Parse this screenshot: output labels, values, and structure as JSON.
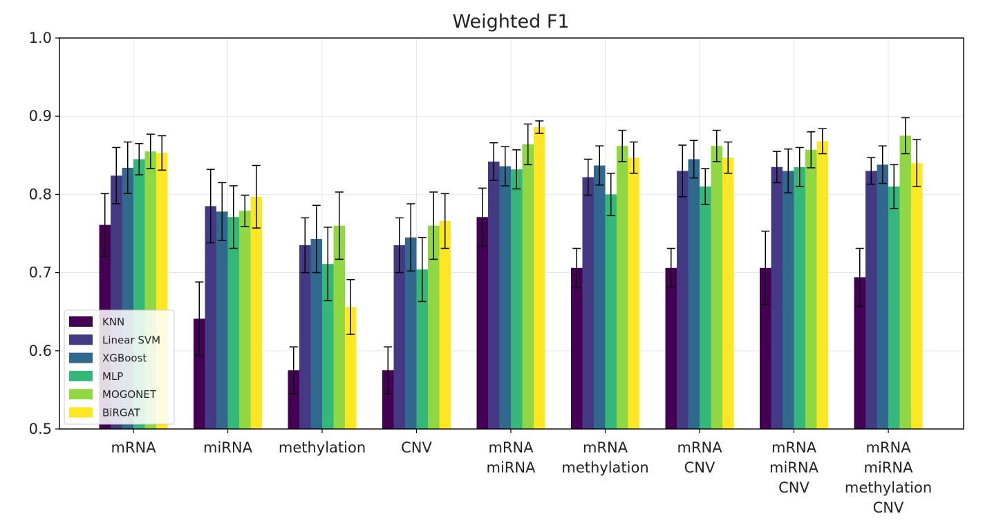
{
  "chart_data": {
    "type": "bar",
    "title": "Weighted F1",
    "xlabel": "",
    "ylabel": "",
    "ylim": [
      0.5,
      1.0
    ],
    "yticks": [
      0.5,
      0.6,
      0.7,
      0.8,
      0.9,
      1.0
    ],
    "ytick_labels": [
      "0.5",
      "0.6",
      "0.7",
      "0.8",
      "0.9",
      "1.0"
    ],
    "grid": true,
    "legend_position": "lower-left",
    "categories": [
      [
        "mRNA"
      ],
      [
        "miRNA"
      ],
      [
        "methylation"
      ],
      [
        "CNV"
      ],
      [
        "mRNA",
        "miRNA"
      ],
      [
        "mRNA",
        "methylation"
      ],
      [
        "mRNA",
        "CNV"
      ],
      [
        "mRNA",
        "miRNA",
        "CNV"
      ],
      [
        "mRNA",
        "miRNA",
        "methylation",
        "CNV"
      ]
    ],
    "series": [
      {
        "name": "KNN",
        "color": "#440154",
        "values": [
          0.761,
          0.641,
          0.575,
          0.575,
          0.771,
          0.706,
          0.706,
          0.706,
          0.694
        ],
        "errors": [
          0.04,
          0.047,
          0.03,
          0.03,
          0.037,
          0.025,
          0.025,
          0.047,
          0.037
        ]
      },
      {
        "name": "Linear SVM",
        "color": "#443983",
        "values": [
          0.824,
          0.785,
          0.735,
          0.735,
          0.842,
          0.822,
          0.83,
          0.835,
          0.83
        ],
        "errors": [
          0.036,
          0.047,
          0.035,
          0.035,
          0.024,
          0.023,
          0.033,
          0.02,
          0.017
        ]
      },
      {
        "name": "XGBoost",
        "color": "#31688e",
        "values": [
          0.834,
          0.778,
          0.743,
          0.745,
          0.836,
          0.837,
          0.845,
          0.83,
          0.838
        ],
        "errors": [
          0.033,
          0.037,
          0.043,
          0.043,
          0.025,
          0.025,
          0.024,
          0.028,
          0.024
        ]
      },
      {
        "name": "MLP",
        "color": "#35b779",
        "values": [
          0.845,
          0.771,
          0.711,
          0.704,
          0.832,
          0.8,
          0.81,
          0.835,
          0.81
        ],
        "errors": [
          0.02,
          0.04,
          0.047,
          0.041,
          0.025,
          0.027,
          0.023,
          0.025,
          0.028
        ]
      },
      {
        "name": "MOGONET",
        "color": "#90d743",
        "values": [
          0.855,
          0.779,
          0.76,
          0.76,
          0.864,
          0.862,
          0.862,
          0.857,
          0.875
        ],
        "errors": [
          0.022,
          0.02,
          0.043,
          0.043,
          0.026,
          0.02,
          0.02,
          0.023,
          0.023
        ]
      },
      {
        "name": "BiRGAT",
        "color": "#fde725",
        "values": [
          0.853,
          0.797,
          0.656,
          0.766,
          0.886,
          0.847,
          0.847,
          0.868,
          0.84
        ],
        "errors": [
          0.022,
          0.04,
          0.035,
          0.035,
          0.008,
          0.02,
          0.02,
          0.016,
          0.03
        ]
      }
    ]
  }
}
